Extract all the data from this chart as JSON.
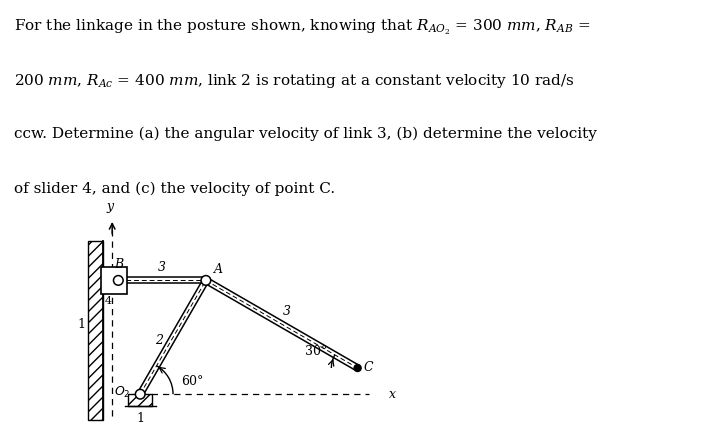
{
  "bg_color": "#ffffff",
  "text_color": "#000000",
  "lines": [
    "For the linkage in the posture shown, knowing that $R_{AO_2}$ = 300 $mm$, $R_{AB}$ =",
    "200 $mm$, $R_{Ac}$ = 400 $mm$, link 2 is rotating at a constant velocity 10 rad/s",
    "ccw. Determine (a) the angular velocity of link 3, (b) determine the velocity",
    "of slider 4, and (c) the velocity of point C."
  ],
  "fontsize": 11.0,
  "angle_60": "60°",
  "angle_30": "30°",
  "label_A": "A",
  "label_B": "B",
  "label_C": "C",
  "label_O2": "$O_2$",
  "label_x": "x",
  "label_y": "y",
  "label_1": "1",
  "label_2": "2",
  "label_3": "3",
  "label_4": "4"
}
